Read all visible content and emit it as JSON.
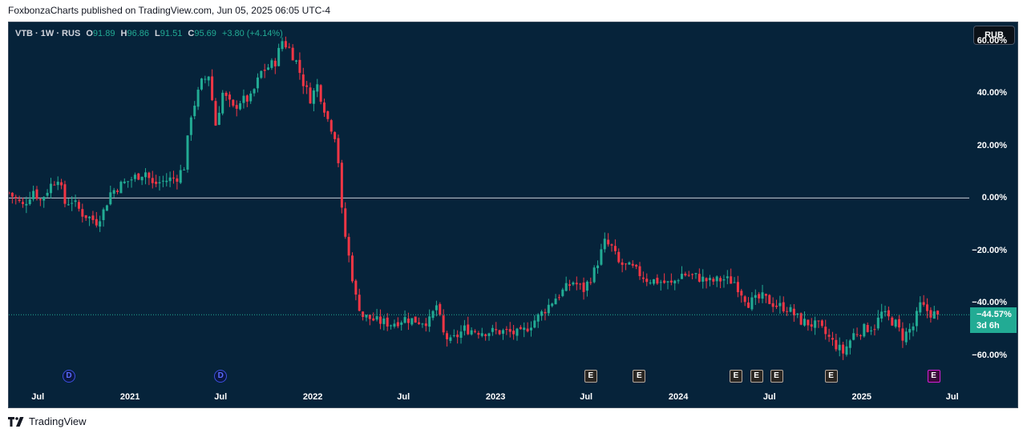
{
  "header": {
    "published_line": "FoxbonzaCharts published on TradingView.com, Jun 05, 2025 06:05 UTC-4"
  },
  "legend": {
    "symbol": "VTB · 1W · RUS",
    "open_label": "O",
    "open": "91.89",
    "high_label": "H",
    "high": "96.86",
    "low_label": "L",
    "low": "91.51",
    "close_label": "C",
    "close": "95.69",
    "change": "+3.80 (+4.14%)"
  },
  "toolbar": {
    "currency_label": "RUB"
  },
  "last_price": {
    "value": "−44.57%",
    "countdown": "3d 6h"
  },
  "markers": {
    "dividend": [
      {
        "label": "D",
        "date": "2020-09-01"
      },
      {
        "label": "D",
        "date": "2021-07-01"
      }
    ],
    "earnings": [
      {
        "label": "E",
        "date": "2023-07-10",
        "next": false
      },
      {
        "label": "E",
        "date": "2023-10-15",
        "next": false
      },
      {
        "label": "E",
        "date": "2024-04-25",
        "next": false
      },
      {
        "label": "E",
        "date": "2024-06-05",
        "next": false
      },
      {
        "label": "E",
        "date": "2024-07-15",
        "next": false
      },
      {
        "label": "E",
        "date": "2024-11-01",
        "next": false
      },
      {
        "label": "E",
        "date": "2025-05-25",
        "next": true
      }
    ]
  },
  "colors": {
    "up": "#22ab94",
    "down": "#f23645",
    "background": "#06233a",
    "zero_line": "#c8cdd6",
    "last_price_line": "#22ab94"
  },
  "footer": {
    "brand": "TradingView"
  },
  "chart_data": {
    "type": "candlestick",
    "scale": "percent",
    "interval": "1W",
    "x_range": [
      "2020-05-04",
      "2025-08-04"
    ],
    "ylim": [
      -72,
      67
    ],
    "y_ticks": [
      {
        "value": 60,
        "label": "60.00%"
      },
      {
        "value": 40,
        "label": "40.00%"
      },
      {
        "value": 20,
        "label": "20.00%"
      },
      {
        "value": 0,
        "label": "0.00%"
      },
      {
        "value": -20,
        "label": "−20.00%"
      },
      {
        "value": -40,
        "label": "−40.00%"
      },
      {
        "value": -60,
        "label": "−60.00%"
      }
    ],
    "x_ticks": [
      {
        "date": "2020-07-01",
        "label": "Jul"
      },
      {
        "date": "2021-01-01",
        "label": "2021"
      },
      {
        "date": "2021-07-01",
        "label": "Jul"
      },
      {
        "date": "2022-01-01",
        "label": "2022"
      },
      {
        "date": "2022-07-01",
        "label": "Jul"
      },
      {
        "date": "2023-01-01",
        "label": "2023"
      },
      {
        "date": "2023-07-01",
        "label": "Jul"
      },
      {
        "date": "2024-01-01",
        "label": "2024"
      },
      {
        "date": "2024-07-01",
        "label": "Jul"
      },
      {
        "date": "2025-01-01",
        "label": "2025"
      },
      {
        "date": "2025-07-01",
        "label": "Jul"
      }
    ],
    "series": [
      {
        "points": [
          [
            "2020-05-04",
            2
          ],
          [
            "2020-06-01",
            -3
          ],
          [
            "2020-06-22",
            3
          ],
          [
            "2020-07-06",
            -1
          ],
          [
            "2020-07-27",
            5
          ],
          [
            "2020-08-10",
            8
          ],
          [
            "2020-08-24",
            -2
          ],
          [
            "2020-09-07",
            -1
          ],
          [
            "2020-09-28",
            -6
          ],
          [
            "2020-10-26",
            -9
          ],
          [
            "2020-11-09",
            -5
          ],
          [
            "2020-11-23",
            2
          ],
          [
            "2020-12-14",
            5
          ],
          [
            "2021-01-11",
            8
          ],
          [
            "2021-02-01",
            10
          ],
          [
            "2021-02-15",
            5
          ],
          [
            "2021-03-01",
            6
          ],
          [
            "2021-04-05",
            8
          ],
          [
            "2021-04-19",
            12
          ],
          [
            "2021-05-03",
            32
          ],
          [
            "2021-05-24",
            44
          ],
          [
            "2021-06-07",
            47
          ],
          [
            "2021-06-21",
            28
          ],
          [
            "2021-07-05",
            40
          ],
          [
            "2021-07-26",
            34
          ],
          [
            "2021-08-09",
            37
          ],
          [
            "2021-08-30",
            38
          ],
          [
            "2021-09-20",
            48
          ],
          [
            "2021-10-04",
            50
          ],
          [
            "2021-10-18",
            52
          ],
          [
            "2021-11-01",
            60
          ],
          [
            "2021-11-15",
            57
          ],
          [
            "2021-11-29",
            52
          ],
          [
            "2021-12-13",
            44
          ],
          [
            "2021-12-27",
            38
          ],
          [
            "2022-01-10",
            43
          ],
          [
            "2022-01-31",
            30
          ],
          [
            "2022-02-14",
            24
          ],
          [
            "2022-02-21",
            14
          ],
          [
            "2022-03-01",
            -8
          ],
          [
            "2022-03-28",
            -38
          ],
          [
            "2022-04-11",
            -45
          ],
          [
            "2022-05-09",
            -47
          ],
          [
            "2022-06-06",
            -48
          ],
          [
            "2022-07-04",
            -46
          ],
          [
            "2022-08-01",
            -47
          ],
          [
            "2022-08-22",
            -47
          ],
          [
            "2022-09-05",
            -41
          ],
          [
            "2022-09-19",
            -52
          ],
          [
            "2022-10-03",
            -55
          ],
          [
            "2022-10-31",
            -50
          ],
          [
            "2022-12-05",
            -51
          ],
          [
            "2023-01-16",
            -51
          ],
          [
            "2023-02-20",
            -52
          ],
          [
            "2023-03-13",
            -48
          ],
          [
            "2023-04-03",
            -44
          ],
          [
            "2023-05-01",
            -38
          ],
          [
            "2023-06-05",
            -32
          ],
          [
            "2023-06-26",
            -35
          ],
          [
            "2023-07-17",
            -28
          ],
          [
            "2023-08-07",
            -17
          ],
          [
            "2023-08-21",
            -19
          ],
          [
            "2023-09-04",
            -25
          ],
          [
            "2023-10-02",
            -27
          ],
          [
            "2023-10-30",
            -31
          ],
          [
            "2023-11-27",
            -32
          ],
          [
            "2023-12-18",
            -33
          ],
          [
            "2024-01-08",
            -29
          ],
          [
            "2024-02-05",
            -30
          ],
          [
            "2024-03-04",
            -32
          ],
          [
            "2024-04-01",
            -31
          ],
          [
            "2024-04-22",
            -32
          ],
          [
            "2024-05-20",
            -40
          ],
          [
            "2024-06-17",
            -38
          ],
          [
            "2024-07-15",
            -41
          ],
          [
            "2024-08-05",
            -42
          ],
          [
            "2024-09-02",
            -47
          ],
          [
            "2024-10-07",
            -49
          ],
          [
            "2024-11-04",
            -55
          ],
          [
            "2024-11-25",
            -59
          ],
          [
            "2024-12-16",
            -52
          ],
          [
            "2025-01-06",
            -50
          ],
          [
            "2025-01-27",
            -49
          ],
          [
            "2025-02-10",
            -44
          ],
          [
            "2025-03-10",
            -48
          ],
          [
            "2025-03-24",
            -53
          ],
          [
            "2025-04-14",
            -49
          ],
          [
            "2025-04-28",
            -41
          ],
          [
            "2025-05-19",
            -44
          ],
          [
            "2025-06-02",
            -44.57
          ]
        ]
      }
    ]
  }
}
